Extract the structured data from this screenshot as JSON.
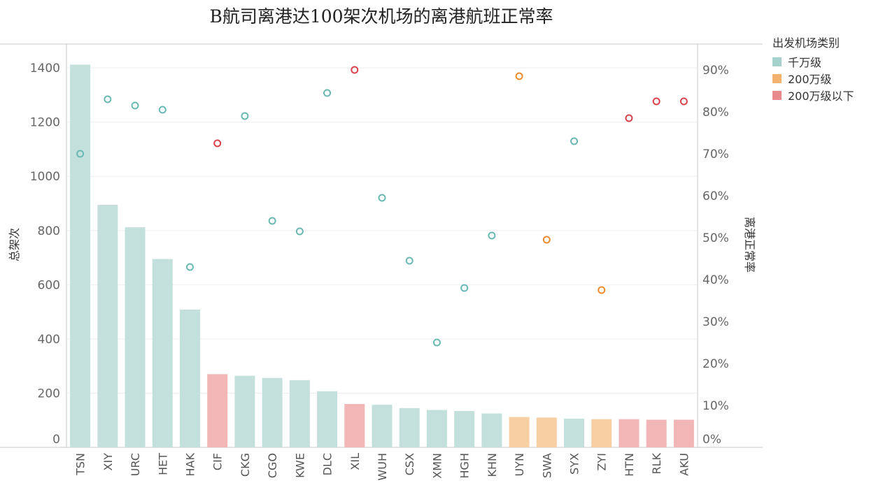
{
  "chart_data": {
    "type": "bar",
    "title": "B航司离港达100架次机场的离港航班正常率",
    "xlabel": "",
    "ylabel": "总架次",
    "y2label": "离港正常率",
    "ylim": [
      0,
      1470
    ],
    "y2lim": [
      0,
      0.95
    ],
    "y_ticks": [
      {
        "value": 0,
        "label": "0"
      },
      {
        "value": 200,
        "label": "200"
      },
      {
        "value": 400,
        "label": "400"
      },
      {
        "value": 600,
        "label": "600"
      },
      {
        "value": 800,
        "label": "800"
      },
      {
        "value": 1000,
        "label": "1000"
      },
      {
        "value": 1200,
        "label": "1200"
      },
      {
        "value": 1400,
        "label": "1400"
      }
    ],
    "y2_ticks": [
      {
        "value": 0,
        "label": "0%"
      },
      {
        "value": 0.1,
        "label": "10%"
      },
      {
        "value": 0.2,
        "label": "20%"
      },
      {
        "value": 0.3,
        "label": "30%"
      },
      {
        "value": 0.4,
        "label": "40%"
      },
      {
        "value": 0.5,
        "label": "50%"
      },
      {
        "value": 0.6,
        "label": "60%"
      },
      {
        "value": 0.7,
        "label": "70%"
      },
      {
        "value": 0.8,
        "label": "80%"
      },
      {
        "value": 0.9,
        "label": "90%"
      }
    ],
    "categories": [
      "TSN",
      "XIY",
      "URC",
      "HET",
      "HAK",
      "CIF",
      "CKG",
      "CGO",
      "KWE",
      "DLC",
      "XIL",
      "WUH",
      "CSX",
      "XMN",
      "HGH",
      "KHN",
      "UYN",
      "SWA",
      "SYX",
      "ZYI",
      "HTN",
      "RLK",
      "AKU"
    ],
    "series": [
      {
        "name": "总架次",
        "kind": "bar",
        "values": [
          1412,
          895,
          812,
          695,
          508,
          270,
          264,
          256,
          248,
          207,
          160,
          157,
          145,
          138,
          134,
          125,
          112,
          110,
          106,
          104,
          104,
          102,
          102
        ]
      },
      {
        "name": "离港正常率",
        "kind": "scatter",
        "values": [
          0.7,
          0.83,
          0.815,
          0.805,
          0.43,
          0.725,
          0.79,
          0.54,
          0.515,
          0.845,
          0.9,
          0.595,
          0.445,
          0.25,
          0.38,
          0.505,
          0.885,
          0.495,
          0.73,
          0.375,
          0.785,
          0.825,
          0.825
        ]
      }
    ],
    "group": [
      "千万级",
      "千万级",
      "千万级",
      "千万级",
      "千万级",
      "200万级以下",
      "千万级",
      "千万级",
      "千万级",
      "千万级",
      "200万级以下",
      "千万级",
      "千万级",
      "千万级",
      "千万级",
      "千万级",
      "200万级",
      "200万级",
      "千万级",
      "200万级",
      "200万级以下",
      "200万级以下",
      "200万级以下"
    ],
    "legend": {
      "title": "出发机场类别",
      "position": "top-right",
      "items": [
        {
          "label": "千万级",
          "bar_color": "#c3e0dd",
          "swatch_color": "#a6d2ce",
          "dot_color": "#6ab8b4"
        },
        {
          "label": "200万级",
          "bar_color": "#f8cfa3",
          "swatch_color": "#f4b270",
          "dot_color": "#ef8b2c"
        },
        {
          "label": "200万级以下",
          "bar_color": "#f2b6b7",
          "swatch_color": "#e88a8c",
          "dot_color": "#d8434b"
        }
      ]
    }
  }
}
